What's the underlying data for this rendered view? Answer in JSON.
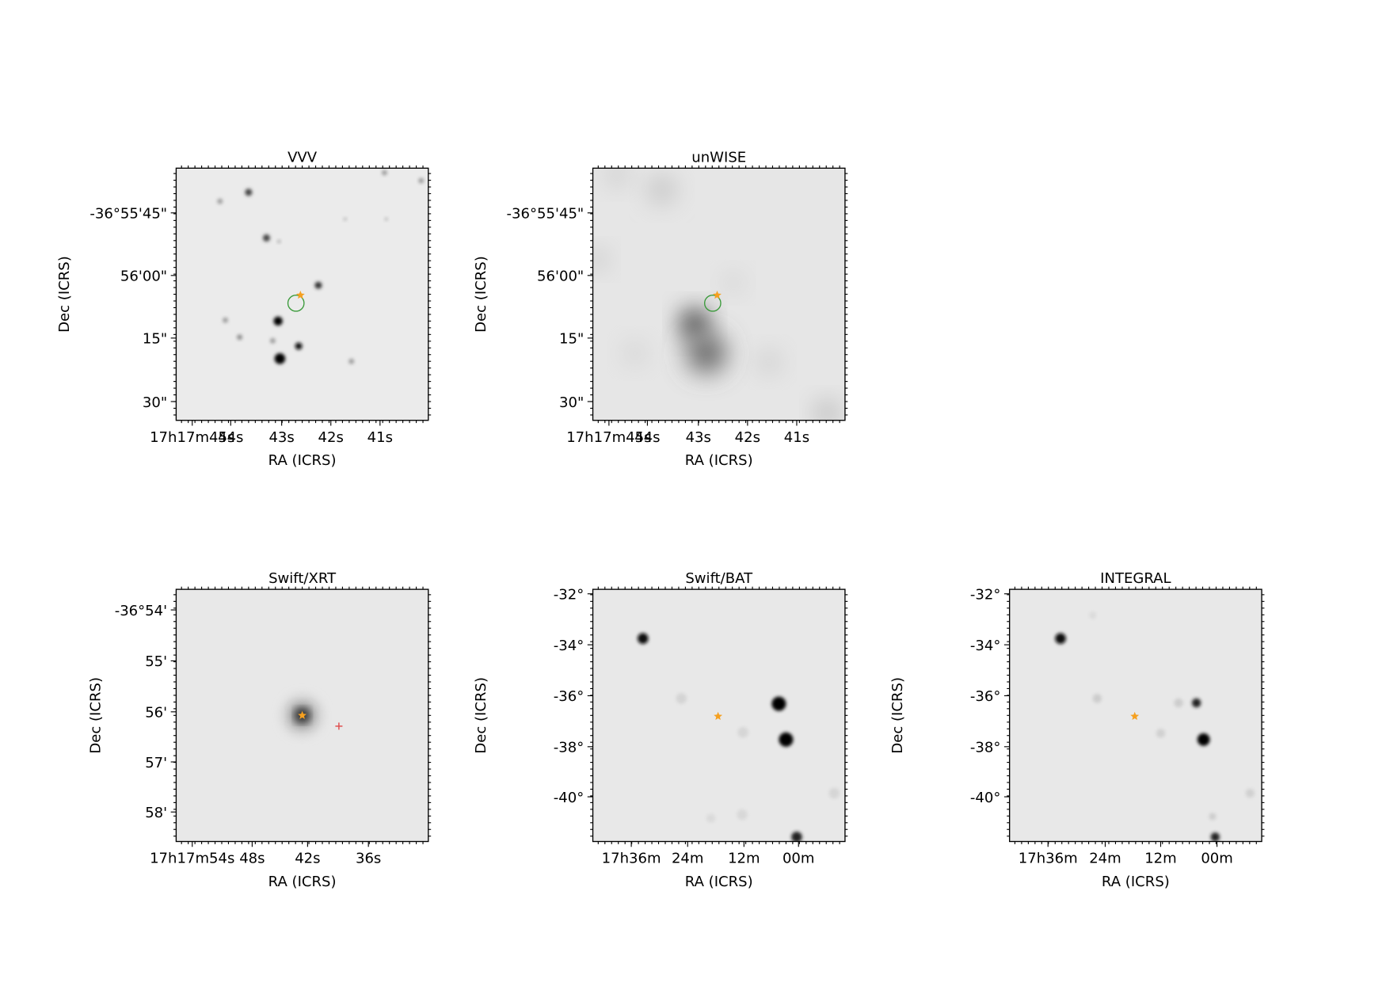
{
  "panels": [
    {
      "title": "VVV",
      "xlabel": "RA (ICRS)",
      "ylabel": "Dec (ICRS)",
      "xticks": [
        "17h17m45s",
        "44s",
        "43s",
        "42s",
        "41s"
      ],
      "yticks": [
        "-36°55'45\"",
        "56'00\"",
        "15\"",
        "30\""
      ]
    },
    {
      "title": "unWISE",
      "xlabel": "RA (ICRS)",
      "ylabel": "Dec (ICRS)",
      "xticks": [
        "17h17m45s",
        "44s",
        "43s",
        "42s",
        "41s"
      ],
      "yticks": [
        "-36°55'45\"",
        "56'00\"",
        "15\"",
        "30\""
      ]
    },
    {
      "title": "Swift/XRT",
      "xlabel": "RA (ICRS)",
      "ylabel": "Dec (ICRS)",
      "xticks": [
        "17h17m54s",
        "48s",
        "42s",
        "36s"
      ],
      "yticks": [
        "-36°54'",
        "55'",
        "56'",
        "57'",
        "58'"
      ]
    },
    {
      "title": "Swift/BAT",
      "xlabel": "RA (ICRS)",
      "ylabel": "Dec (ICRS)",
      "xticks": [
        "17h36m",
        "24m",
        "12m",
        "00m"
      ],
      "yticks": [
        "-32°",
        "-34°",
        "-36°",
        "-38°",
        "-40°"
      ]
    },
    {
      "title": "INTEGRAL",
      "xlabel": "RA (ICRS)",
      "ylabel": "Dec (ICRS)",
      "xticks": [
        "17h36m",
        "24m",
        "12m",
        "00m"
      ],
      "yticks": [
        "-32°",
        "-34°",
        "-36°",
        "-38°",
        "-40°"
      ]
    }
  ]
}
